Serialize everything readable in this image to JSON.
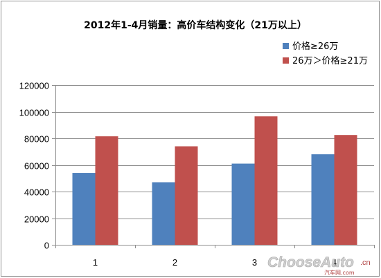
{
  "chart_data": {
    "type": "bar",
    "title": "2012年1-4月销量：高价车结构变化（21万以上）",
    "categories": [
      "1",
      "2",
      "3",
      "4"
    ],
    "series": [
      {
        "name": "价格≥26万",
        "values": [
          54000,
          47000,
          61000,
          68000
        ],
        "color": "#4f81bd"
      },
      {
        "name": "26万＞价格≥21万",
        "values": [
          81500,
          74000,
          96500,
          82500
        ],
        "color": "#c0504d"
      }
    ],
    "ylim": [
      0,
      120000
    ],
    "yticks": [
      "0",
      "20000",
      "40000",
      "60000",
      "80000",
      "100000",
      "120000"
    ],
    "grid": true,
    "legend": "top-right",
    "xlabel": "",
    "ylabel": ""
  },
  "watermark": {
    "brand": "ChooseAuto",
    "subtitle": "汽车网.com",
    "domain": ".cn"
  }
}
